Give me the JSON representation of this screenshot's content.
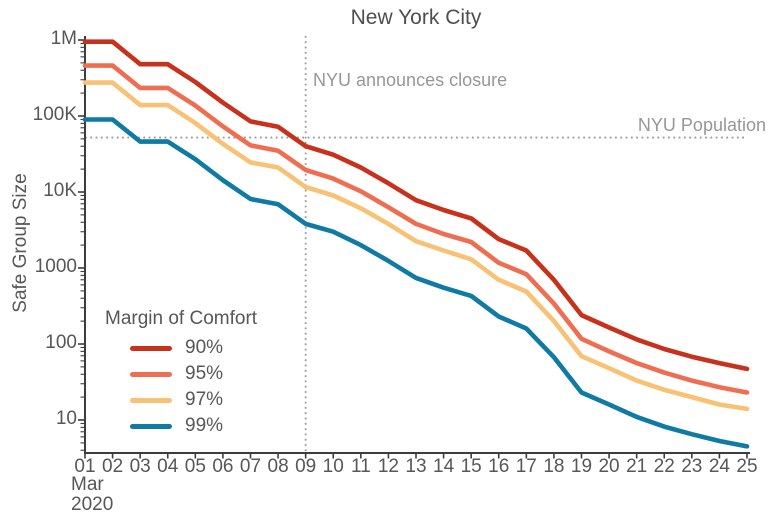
{
  "chart_data": {
    "type": "line",
    "title": "New York City",
    "ylabel": "Safe Group Size",
    "yscale": "log",
    "ylim": [
      4,
      1200000
    ],
    "grid": "off",
    "x_axis": {
      "month": "Mar",
      "year": "2020",
      "day_labels": [
        "01",
        "02",
        "03",
        "04",
        "05",
        "06",
        "07",
        "08",
        "09",
        "10",
        "11",
        "12",
        "13",
        "14",
        "15",
        "16",
        "17",
        "18",
        "19",
        "20",
        "21",
        "22",
        "23",
        "24",
        "25"
      ]
    },
    "y_ticks": [
      {
        "value": 1000000,
        "label": "1M"
      },
      {
        "value": 100000,
        "label": "100K"
      },
      {
        "value": 10000,
        "label": "10K"
      },
      {
        "value": 1000,
        "label": "1000"
      },
      {
        "value": 100,
        "label": "100"
      },
      {
        "value": 10,
        "label": "10"
      }
    ],
    "legend": {
      "title": "Margin of Comfort",
      "position": "lower-left"
    },
    "series": [
      {
        "name": "90%",
        "color": "#c8311b",
        "values": [
          950000,
          950000,
          480000,
          480000,
          280000,
          150000,
          85000,
          72000,
          40000,
          31000,
          21000,
          13000,
          7800,
          5800,
          4500,
          2400,
          1700,
          700,
          240,
          165,
          115,
          86,
          68,
          56,
          47
        ]
      },
      {
        "name": "95%",
        "color": "#ef6e51",
        "values": [
          460000,
          460000,
          234000,
          234000,
          137000,
          73000,
          41000,
          35000,
          19500,
          15000,
          10200,
          6300,
          3800,
          2800,
          2200,
          1170,
          830,
          340,
          117,
          80,
          56,
          42,
          33,
          27,
          23
        ]
      },
      {
        "name": "97%",
        "color": "#f8c173",
        "values": [
          275000,
          275000,
          139000,
          139000,
          81000,
          43000,
          24500,
          21000,
          11600,
          9000,
          6100,
          3800,
          2250,
          1700,
          1300,
          700,
          490,
          200,
          69,
          48,
          33,
          25,
          20,
          16,
          14
        ]
      },
      {
        "name": "99%",
        "color": "#0f7aa3",
        "values": [
          90000,
          90000,
          46000,
          46000,
          27000,
          14300,
          8100,
          6900,
          3800,
          3000,
          2000,
          1240,
          740,
          550,
          430,
          230,
          160,
          67,
          23,
          16,
          11,
          8.2,
          6.5,
          5.3,
          4.5
        ]
      }
    ],
    "annotations": {
      "closure": {
        "text": "NYU announces closure",
        "day": 9
      },
      "population": {
        "text": "NYU Population",
        "value": 52000
      }
    }
  }
}
